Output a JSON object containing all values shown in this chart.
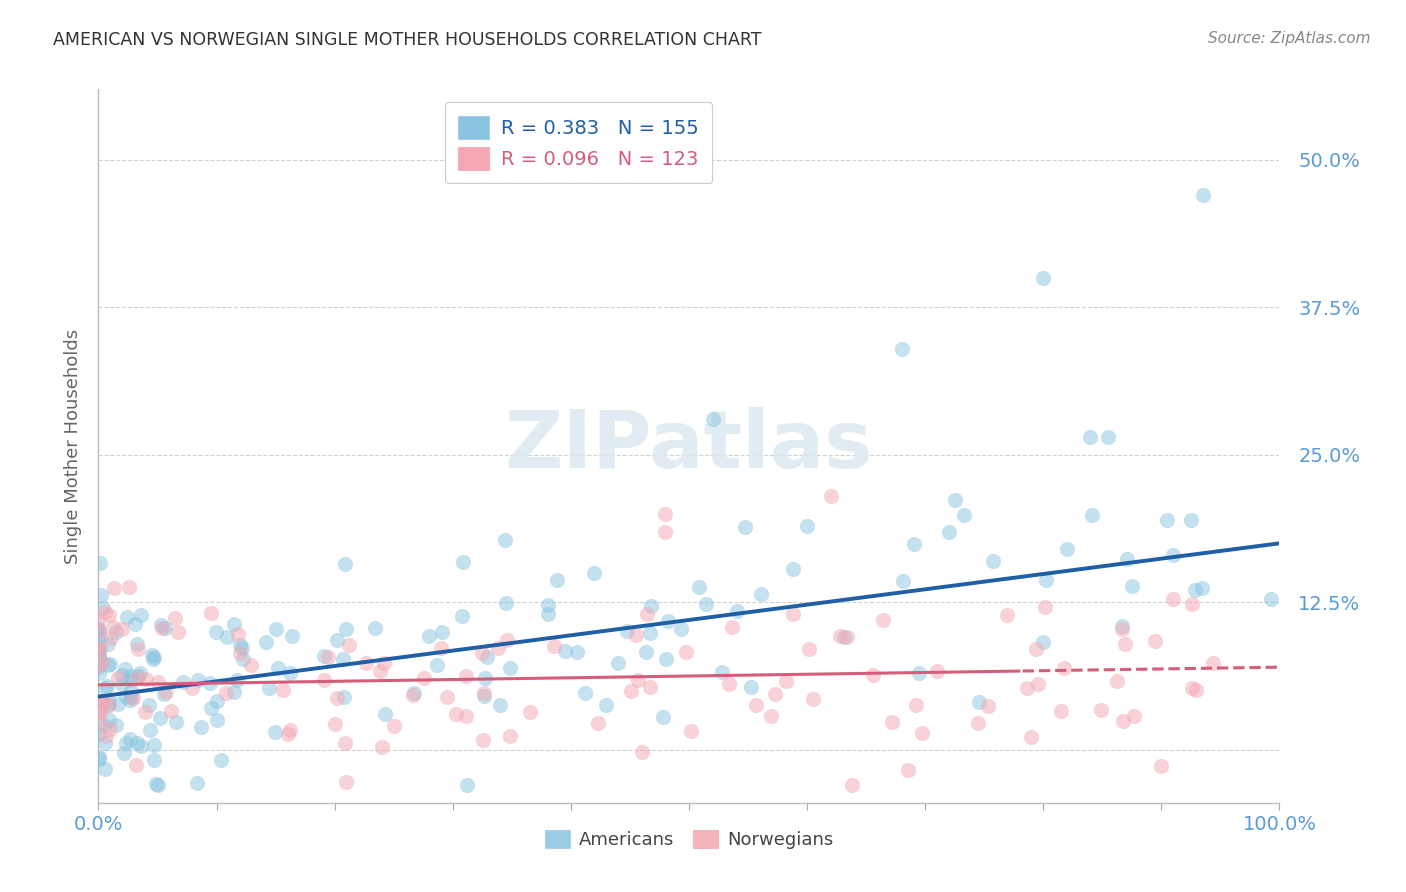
{
  "title": "AMERICAN VS NORWEGIAN SINGLE MOTHER HOUSEHOLDS CORRELATION CHART",
  "source": "Source: ZipAtlas.com",
  "ylabel": "Single Mother Households",
  "ytick_values": [
    0.0,
    0.125,
    0.25,
    0.375,
    0.5
  ],
  "ytick_labels": [
    "",
    "12.5%",
    "25.0%",
    "37.5%",
    "50.0%"
  ],
  "xtick_values": [
    0.0,
    0.1,
    0.2,
    0.3,
    0.4,
    0.5,
    0.6,
    0.7,
    0.8,
    0.9,
    1.0
  ],
  "xtick_labels": [
    "0.0%",
    "",
    "",
    "",
    "",
    "",
    "",
    "",
    "",
    "",
    "100.0%"
  ],
  "xlim": [
    0.0,
    1.0
  ],
  "ylim": [
    -0.045,
    0.56
  ],
  "american_color": "#89c4e1",
  "norwegian_color": "#f4a7b3",
  "american_line_color": "#1f5fa6",
  "norwegian_line_color": "#d45e7a",
  "norwegian_line_dashed": true,
  "background_color": "#ffffff",
  "grid_color": "#cccccc",
  "watermark_text": "ZIPatlas",
  "watermark_color": "#dce8f0",
  "title_color": "#333333",
  "tick_label_color": "#5b9bd5",
  "ylabel_color": "#666666",
  "source_color": "#888888",
  "legend_am_label": "R = 0.383   N = 155",
  "legend_no_label": "R = 0.096   N = 123",
  "legend_am_color": "#1f5fa6",
  "legend_no_color": "#d45e7a",
  "bottom_legend_am": "Americans",
  "bottom_legend_no": "Norwegians",
  "american_N": 155,
  "norwegian_N": 123,
  "american_R": 0.383,
  "norwegian_R": 0.096,
  "american_line_intercept": 0.045,
  "american_line_slope": 0.13,
  "norwegian_line_intercept": 0.055,
  "norwegian_line_slope": 0.015
}
